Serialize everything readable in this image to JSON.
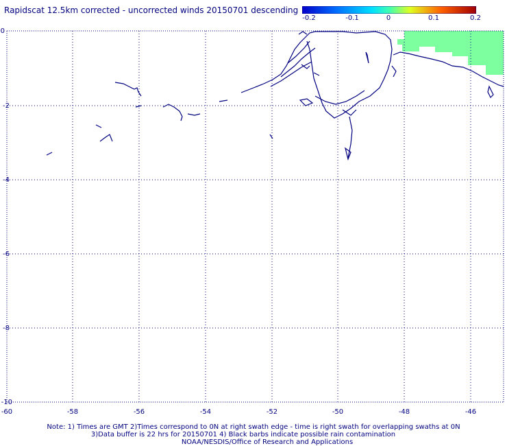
{
  "header": {
    "title": "Rapidscat 12.5km corrected - uncorrected winds 20150701 descending"
  },
  "colorbar": {
    "labels": [
      "-0.2",
      "-0.1",
      "0",
      "0.1",
      "0.2"
    ],
    "values": [
      -0.2,
      -0.1,
      0,
      0.1,
      0.2
    ],
    "colors": [
      "#0000c8",
      "#00a0ff",
      "#00ffc0",
      "#c0ff40",
      "#ffc000",
      "#ff4000",
      "#a00000"
    ]
  },
  "map": {
    "lat_ticks": [
      "0",
      "-2",
      "-4",
      "-6",
      "-8",
      "-10"
    ],
    "lon_ticks": [
      "-60",
      "-58",
      "-56",
      "-54",
      "-52",
      "-50",
      "-48",
      "-46"
    ],
    "lat_range": [
      -10,
      0
    ],
    "lon_range": [
      -60,
      -45
    ],
    "grid": "dotted",
    "coastline_color": "#000080",
    "wind_difference_fill_color": "#7dffa0"
  },
  "footer": {
    "note_line1": "Note: 1) Times are GMT 2)Times correspond to 0N at right swath edge - time is right swath for overlapping swaths at 0N",
    "note_line2": "3)Data buffer is 22 hrs for 20150701 4) Black barbs indicate possible rain contamination",
    "credit": "NOAA/NESDIS/Office of Research and Applications"
  }
}
